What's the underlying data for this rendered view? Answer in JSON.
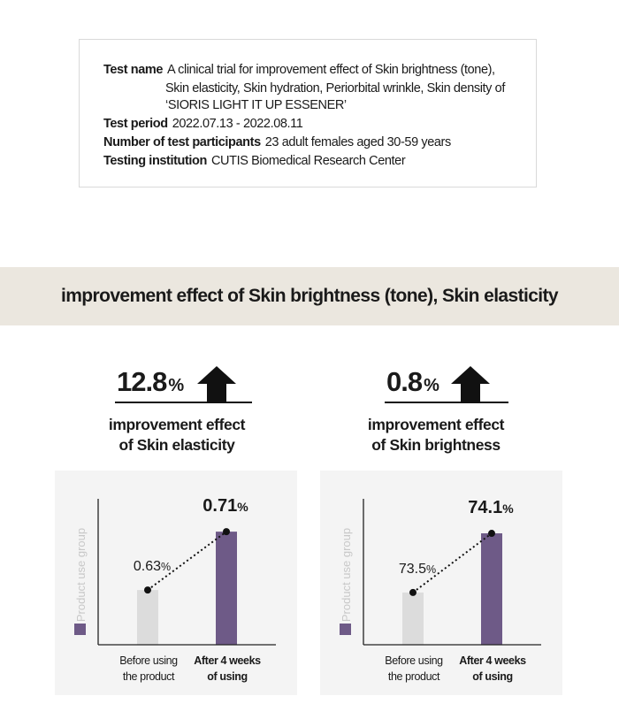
{
  "info": {
    "test_name_label": "Test name",
    "test_name_lines": [
      "A clinical trial for improvement effect of Skin brightness (tone),",
      "Skin elasticity, Skin hydration, Periorbital wrinkle, Skin density of",
      "‘SIORIS LIGHT IT UP ESSENER’"
    ],
    "test_period_label": "Test period",
    "test_period_value": "2022.07.13 - 2022.08.11",
    "participants_label": "Number of test participants",
    "participants_value": "23 adult females aged 30-59 years",
    "institution_label": "Testing institution",
    "institution_value": "CUTIS Biomedical Research Center"
  },
  "banner": {
    "title": "improvement effect of Skin brightness (tone), Skin elasticity"
  },
  "stats": [
    {
      "number": "12.8",
      "unit": "%",
      "desc_line1": "improvement effect",
      "desc_line2": "of Skin elasticity",
      "arrow_icon": "arrow-up-icon"
    },
    {
      "number": "0.8",
      "unit": "%",
      "desc_line1": "improvement effect",
      "desc_line2": "of Skin brightness",
      "arrow_icon": "arrow-up-icon"
    }
  ],
  "colors": {
    "before_bar": "#dcdcdc",
    "after_bar": "#6e5a87",
    "banner_bg": "#ebe7df",
    "panel_bg": "#f4f4f4"
  },
  "chart_data": [
    {
      "type": "bar",
      "categories": [
        "Before using the product",
        "After 4 weeks of using"
      ],
      "category_lines": [
        [
          "Before using",
          "the product"
        ],
        [
          "After 4 weeks",
          "of using"
        ]
      ],
      "series": [
        {
          "name": "Product use group",
          "values": [
            0.63,
            0.71
          ]
        }
      ],
      "value_labels": [
        "0.63",
        "0.71"
      ],
      "unit": "%",
      "ylabel": "Product use group",
      "ylim": [
        0.555,
        0.755
      ],
      "grid": false,
      "legend": "left"
    },
    {
      "type": "bar",
      "categories": [
        "Before using the product",
        "After 4 weeks of using"
      ],
      "category_lines": [
        [
          "Before using",
          "the product"
        ],
        [
          "After 4 weeks",
          "of using"
        ]
      ],
      "series": [
        {
          "name": "Product use group",
          "values": [
            73.5,
            74.1
          ]
        }
      ],
      "value_labels": [
        "73.5",
        "74.1"
      ],
      "unit": "%",
      "ylabel": "Product use group",
      "ylim": [
        72.97,
        74.45
      ],
      "grid": false,
      "legend": "left"
    }
  ]
}
